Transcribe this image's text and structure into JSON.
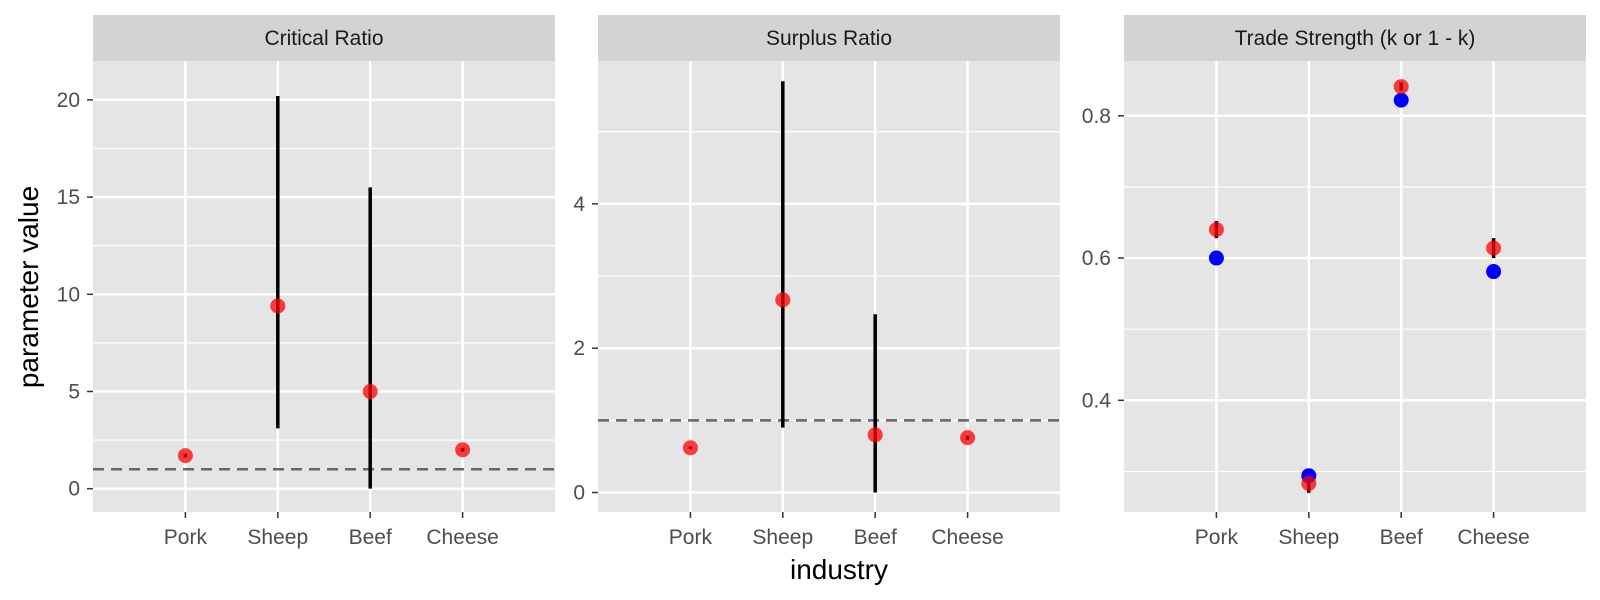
{
  "figure": {
    "xlabel": "industry",
    "ylabel": "parameter value"
  },
  "colors": {
    "panel_background": "#e5e5e5",
    "strip_background": "#d3d3d3",
    "grid": "#ffffff",
    "primary_point": "#ff0000",
    "secondary_point": "#0000ff",
    "error_bar": "#000000",
    "reference_line": "#666666"
  },
  "chart_data": [
    {
      "type": "scatter",
      "title": "Critical Ratio",
      "categories": [
        "Pork",
        "Sheep",
        "Beef",
        "Cheese"
      ],
      "ylim": [
        -1.2,
        22
      ],
      "yticks": [
        0,
        5,
        10,
        15,
        20
      ],
      "ytick_labels": [
        "0",
        "5",
        "10",
        "15",
        "20"
      ],
      "reference_line": 1,
      "series": [
        {
          "color": "#ff0000",
          "alpha": 0.75,
          "values": [
            1.7,
            9.4,
            5.0,
            2.0
          ]
        }
      ],
      "error_bars": [
        {
          "low": 1.6,
          "high": 1.8
        },
        {
          "low": 3.1,
          "high": 20.2
        },
        {
          "low": 0.0,
          "high": 15.5
        },
        {
          "low": 1.9,
          "high": 2.1
        }
      ]
    },
    {
      "type": "scatter",
      "title": "Surplus Ratio",
      "categories": [
        "Pork",
        "Sheep",
        "Beef",
        "Cheese"
      ],
      "ylim": [
        -0.27,
        5.98
      ],
      "yticks": [
        0,
        2,
        4
      ],
      "ytick_labels": [
        "0",
        "2",
        "4"
      ],
      "reference_line": 1,
      "series": [
        {
          "color": "#ff0000",
          "alpha": 0.75,
          "values": [
            0.62,
            2.67,
            0.8,
            0.76
          ]
        }
      ],
      "error_bars": [
        {
          "low": 0.6,
          "high": 0.64
        },
        {
          "low": 0.9,
          "high": 5.7
        },
        {
          "low": 0.0,
          "high": 2.47
        },
        {
          "low": 0.73,
          "high": 0.79
        }
      ]
    },
    {
      "type": "scatter",
      "title": "Trade Strength (k or 1 - k)",
      "categories": [
        "Pork",
        "Sheep",
        "Beef",
        "Cheese"
      ],
      "ylim": [
        0.243,
        0.877
      ],
      "yticks": [
        0.4,
        0.6,
        0.8
      ],
      "ytick_labels": [
        "0.4",
        "0.6",
        "0.8"
      ],
      "reference_line": null,
      "series": [
        {
          "color": "#ff0000",
          "alpha": 0.75,
          "values": [
            0.64,
            0.283,
            0.841,
            0.614
          ]
        },
        {
          "color": "#0000ff",
          "alpha": 1.0,
          "values": [
            0.6,
            0.294,
            0.822,
            0.581
          ]
        }
      ],
      "error_bars": [
        {
          "low": 0.628,
          "high": 0.652
        },
        {
          "low": 0.27,
          "high": 0.296
        },
        {
          "low": 0.835,
          "high": 0.847
        },
        {
          "low": 0.6,
          "high": 0.628
        }
      ]
    }
  ]
}
